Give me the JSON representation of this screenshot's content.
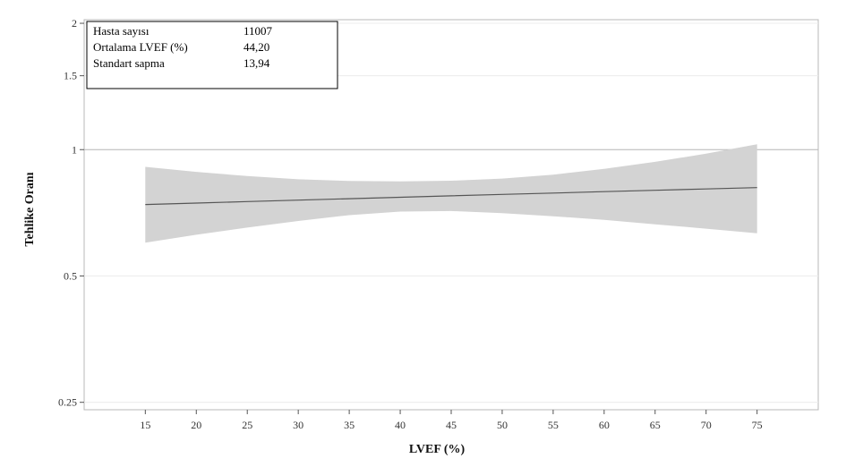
{
  "chart_data": {
    "type": "line",
    "title": "",
    "xlabel": "LVEF (%)",
    "ylabel": "Tehlike Oranı",
    "y_scale": "log",
    "xlim": [
      9,
      81
    ],
    "ylim": [
      0.24,
      2.04
    ],
    "x_ticks": [
      15,
      20,
      25,
      30,
      35,
      40,
      45,
      50,
      55,
      60,
      65,
      70,
      75
    ],
    "y_ticks": [
      0.25,
      0.5,
      1,
      1.5,
      2
    ],
    "y_tick_labels": [
      "0.25",
      "0.5",
      "1",
      "1.5",
      "2"
    ],
    "reference_line": 1,
    "grid": "horizontal",
    "series": [
      {
        "x": [
          15,
          20,
          25,
          30,
          35,
          40,
          45,
          50,
          55,
          60,
          65,
          70,
          75
        ],
        "y": [
          0.74,
          0.746,
          0.752,
          0.758,
          0.764,
          0.77,
          0.776,
          0.782,
          0.788,
          0.794,
          0.8,
          0.806,
          0.812
        ],
        "lower": [
          0.6,
          0.627,
          0.652,
          0.676,
          0.698,
          0.712,
          0.714,
          0.706,
          0.694,
          0.68,
          0.664,
          0.648,
          0.632
        ],
        "upper": [
          0.91,
          0.885,
          0.865,
          0.85,
          0.842,
          0.84,
          0.843,
          0.853,
          0.872,
          0.9,
          0.935,
          0.978,
          1.03
        ],
        "line_color": "#555555",
        "band_color": "#d3d3d3"
      }
    ],
    "info_box": {
      "rows": [
        {
          "label": "Hasta sayısı",
          "value": "11007"
        },
        {
          "label": "Ortalama LVEF (%)",
          "value": "44,20"
        },
        {
          "label": "Standart sapma",
          "value": "13,94"
        }
      ]
    }
  }
}
